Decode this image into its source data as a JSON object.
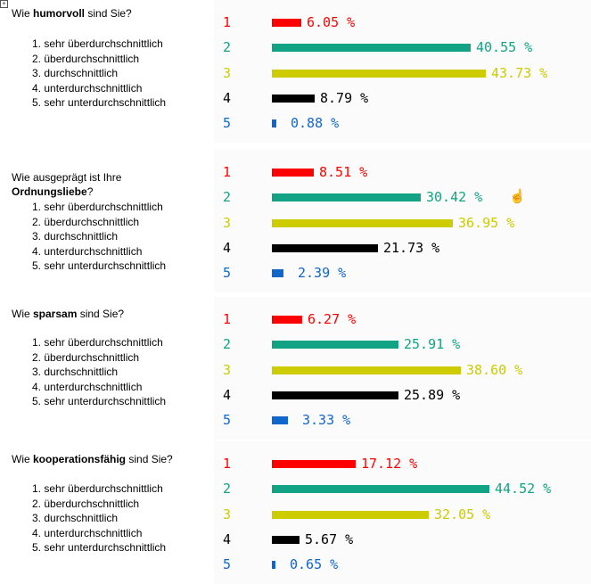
{
  "corner_icon": "expand-icon",
  "colors": [
    "#ff0000",
    "#11a383",
    "#cccc00",
    "#000000",
    "#1166cc"
  ],
  "questions": [
    {
      "pre": "Wie ",
      "bold": "humorvoll",
      "post": " sind Sie?",
      "options": [
        "1. sehr überdurchschnittlich",
        "2. überdurchschnittlich",
        "3. durchschnittlich",
        "4. unterdurchschnittlich",
        "5. sehr unterdurchschnittlich"
      ]
    },
    {
      "pre": "Wie ausgeprägt ist Ihre ",
      "bold": "Ordnungsliebe",
      "post": "?",
      "options": [
        "1.  sehr überdurchschnittlich",
        "2.  überdurchschnittlich",
        "3.  durchschnittlich",
        "4.  unterdurchschnittlich",
        "5.  sehr unterdurchschnittlich"
      ]
    },
    {
      "pre": "Wie ",
      "bold": "sparsam",
      "post": " sind Sie?",
      "options": [
        "1. sehr überdurchschnittlich",
        "2. überdurchschnittlich",
        "3. durchschnittlich",
        "4. unterdurchschnittlich",
        "5. sehr unterdurchschnittlich"
      ]
    },
    {
      "pre": "Wie ",
      "bold": "kooperationsfähig",
      "post": " sind Sie?",
      "options": [
        "1. sehr überdurchschnittlich",
        "2. überdurchschnittlich",
        "3. durchschnittlich",
        "4. unterdurchschnittlich",
        "5.  sehr unterdurchschnittlich"
      ]
    }
  ],
  "chart_data": [
    {
      "type": "bar",
      "categories": [
        "1",
        "2",
        "3",
        "4",
        "5"
      ],
      "values": [
        6.05,
        40.55,
        43.73,
        8.79,
        0.88
      ],
      "labels": [
        "6.05 %",
        "40.55 %",
        "43.73 %",
        "8.79 %",
        "0.88 %"
      ]
    },
    {
      "type": "bar",
      "categories": [
        "1",
        "2",
        "3",
        "4",
        "5"
      ],
      "values": [
        8.51,
        30.42,
        36.95,
        21.73,
        2.39
      ],
      "labels": [
        "8.51 %",
        "30.42 %",
        "36.95 %",
        "21.73 %",
        "2.39 %"
      ]
    },
    {
      "type": "bar",
      "categories": [
        "1",
        "2",
        "3",
        "4",
        "5"
      ],
      "values": [
        6.27,
        25.91,
        38.6,
        25.89,
        3.33
      ],
      "labels": [
        "6.27 %",
        "25.91 %",
        "38.60 %",
        "25.89 %",
        "3.33 %"
      ]
    },
    {
      "type": "bar",
      "categories": [
        "1",
        "2",
        "3",
        "4",
        "5"
      ],
      "values": [
        17.12,
        44.52,
        32.05,
        5.67,
        0.65
      ],
      "labels": [
        "17.12 %",
        "44.52 %",
        "32.05 %",
        "5.67 %",
        "0.65 %"
      ]
    }
  ]
}
